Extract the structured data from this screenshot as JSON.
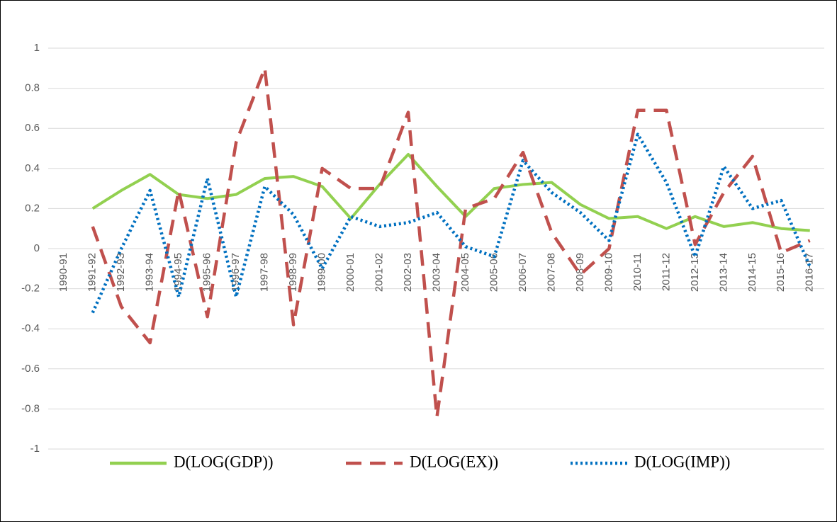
{
  "chart_data": {
    "type": "line",
    "categories": [
      "1990-91",
      "1991-92",
      "1992-93",
      "1993-94",
      "1994-95",
      "1995-96",
      "1996-97",
      "1997-98",
      "1998-99",
      "1999-00",
      "2000-01",
      "2001-02",
      "2002-03",
      "2003-04",
      "2004-05",
      "2005-06",
      "2006-07",
      "2007-08",
      "2008-09",
      "2009-10",
      "2010-11",
      "2011-12",
      "2012-13",
      "2013-14",
      "2014-15",
      "2015-16",
      "2016-17"
    ],
    "series": [
      {
        "name": "D(LOG(GDP))",
        "color": "#92d050",
        "dash": "solid",
        "values": [
          null,
          0.2,
          0.29,
          0.37,
          0.27,
          0.25,
          0.27,
          0.35,
          0.36,
          0.31,
          0.15,
          0.32,
          0.47,
          0.31,
          0.16,
          0.3,
          0.32,
          0.33,
          0.22,
          0.15,
          0.16,
          0.1,
          0.16,
          0.11,
          0.13,
          0.1,
          0.09
        ]
      },
      {
        "name": "D(LOG(EX))",
        "color": "#c0504d",
        "dash": "dashed",
        "values": [
          null,
          0.11,
          -0.29,
          -0.47,
          0.29,
          -0.34,
          0.53,
          0.9,
          -0.38,
          0.4,
          0.3,
          0.3,
          0.68,
          -0.84,
          0.2,
          0.25,
          0.48,
          0.08,
          -0.13,
          0,
          0.69,
          0.69,
          0.02,
          0.28,
          0.46,
          -0.02,
          0.04
        ]
      },
      {
        "name": "D(LOG(IMP))",
        "color": "#0070c0",
        "dash": "dotted",
        "values": [
          null,
          -0.32,
          0,
          0.29,
          -0.24,
          0.35,
          -0.24,
          0.31,
          0.17,
          -0.1,
          0.16,
          0.11,
          0.13,
          0.18,
          0.01,
          -0.04,
          0.44,
          0.28,
          0.18,
          0.04,
          0.57,
          0.33,
          -0.04,
          0.41,
          0.2,
          0.24,
          -0.09
        ]
      }
    ],
    "ylim": [
      -1,
      1
    ],
    "yticks": [
      -1,
      -0.8,
      -0.6,
      -0.4,
      -0.2,
      0,
      0.2,
      0.4,
      0.6,
      0.8,
      1
    ],
    "grid": true,
    "legend": "bottom"
  }
}
